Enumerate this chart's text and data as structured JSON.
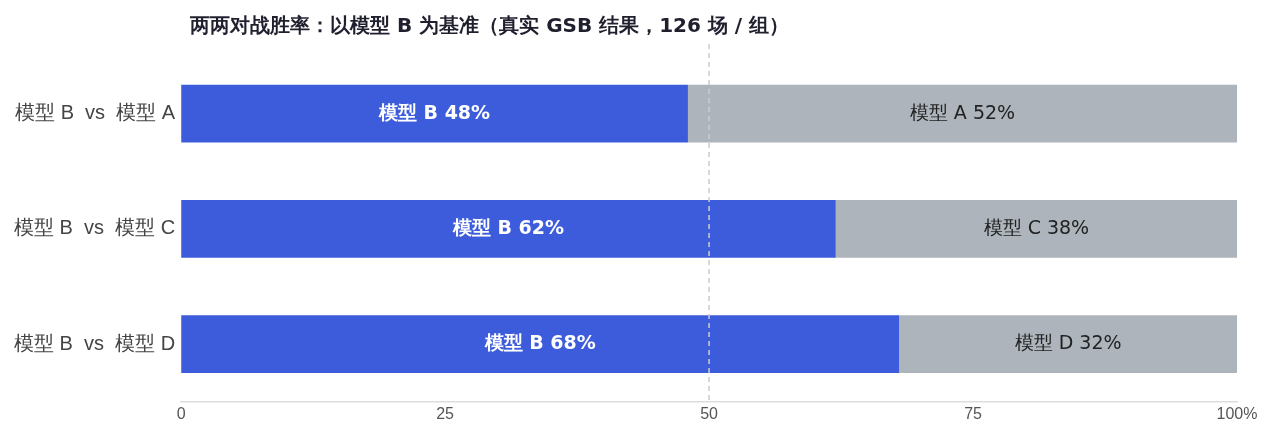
{
  "chart_data": {
    "type": "bar",
    "orientation": "horizontal",
    "stacked": true,
    "title": "两两对战胜率：以模型 B 为基准（真实 GSB 结果，126 场 / 组）",
    "categories": [
      "模型 B  vs  模型 A",
      "模型 B  vs  模型 C",
      "模型 B  vs  模型 D"
    ],
    "series": [
      {
        "color": "#3d5cdb",
        "values": [
          48,
          62,
          68
        ],
        "value_labels": [
          "模型 B 48%",
          "模型 B 62%",
          "模型 B 68%"
        ]
      },
      {
        "color": "#adb4bc",
        "values": [
          52,
          38,
          32
        ],
        "value_labels": [
          "模型 A 52%",
          "模型 C 38%",
          "模型 D 32%"
        ]
      }
    ],
    "xlim": [
      0,
      100
    ],
    "xticks": [
      0,
      25,
      50,
      75,
      {
        "value": 100,
        "label": "100%"
      }
    ],
    "ref_lines": [
      {
        "axis": "x",
        "value": 50,
        "color": "#cccccc",
        "line_style": "dashed"
      }
    ],
    "grid": false,
    "legend": false
  }
}
